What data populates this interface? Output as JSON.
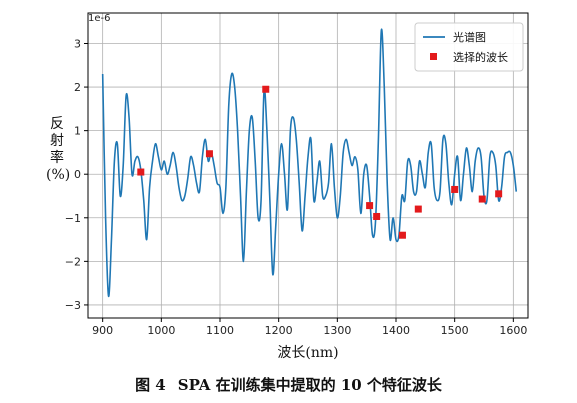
{
  "caption": {
    "figure_no": "图 4",
    "text": "SPA 在训练集中提取的 10 个特征波长"
  },
  "chart_data": {
    "type": "line",
    "xlabel": "波长(nm)",
    "ylabel_chars": [
      "反",
      "射",
      "率",
      "(%)"
    ],
    "y_offset_text": "1e-6",
    "x_ticks": [
      900,
      1000,
      1100,
      1200,
      1300,
      1400,
      1500,
      1600
    ],
    "y_ticks": [
      -3,
      -2,
      -1,
      0,
      1,
      2,
      3
    ],
    "xlim": [
      875,
      1625
    ],
    "ylim": [
      -3.3,
      3.7
    ],
    "grid": true,
    "legend_position": "top-right",
    "colors": {
      "line": "#1f77b4",
      "marker": "#e31a1c"
    },
    "series": [
      {
        "name": "光谱图",
        "kind": "line",
        "x": [
          900,
          905,
          910,
          915,
          920,
          925,
          930,
          935,
          940,
          945,
          950,
          955,
          960,
          965,
          970,
          975,
          980,
          985,
          990,
          995,
          1000,
          1005,
          1010,
          1015,
          1020,
          1025,
          1030,
          1035,
          1040,
          1045,
          1050,
          1055,
          1060,
          1065,
          1070,
          1075,
          1080,
          1085,
          1090,
          1095,
          1100,
          1105,
          1110,
          1115,
          1120,
          1125,
          1130,
          1135,
          1140,
          1145,
          1150,
          1155,
          1160,
          1165,
          1170,
          1175,
          1180,
          1185,
          1190,
          1195,
          1200,
          1205,
          1210,
          1215,
          1220,
          1225,
          1230,
          1235,
          1240,
          1245,
          1250,
          1255,
          1260,
          1265,
          1270,
          1275,
          1280,
          1285,
          1290,
          1295,
          1300,
          1305,
          1310,
          1315,
          1320,
          1325,
          1330,
          1335,
          1340,
          1345,
          1350,
          1355,
          1360,
          1365,
          1370,
          1375,
          1380,
          1385,
          1390,
          1395,
          1400,
          1405,
          1410,
          1415,
          1420,
          1425,
          1430,
          1435,
          1440,
          1445,
          1450,
          1455,
          1460,
          1465,
          1470,
          1475,
          1480,
          1485,
          1490,
          1495,
          1500,
          1505,
          1510,
          1515,
          1520,
          1525,
          1530,
          1535,
          1540,
          1545,
          1550,
          1555,
          1560,
          1565,
          1570,
          1575,
          1580,
          1585,
          1590,
          1595,
          1600,
          1605
        ],
        "y": [
          2.3,
          -1.0,
          -2.8,
          -1.5,
          0.3,
          0.7,
          -0.5,
          0.2,
          1.8,
          1.3,
          0.0,
          0.3,
          0.4,
          0.1,
          -0.6,
          -1.5,
          -0.3,
          0.3,
          0.7,
          0.4,
          0.1,
          0.3,
          0.0,
          0.2,
          0.5,
          0.2,
          -0.3,
          -0.6,
          -0.5,
          -0.1,
          0.4,
          0.2,
          -0.2,
          -0.4,
          0.4,
          0.8,
          0.3,
          0.5,
          0.2,
          -0.2,
          -0.3,
          -0.9,
          -0.3,
          1.6,
          2.3,
          2.0,
          1.0,
          -0.5,
          -2.0,
          -0.4,
          1.0,
          1.3,
          0.3,
          -1.0,
          -0.6,
          1.9,
          1.0,
          -0.6,
          -2.3,
          -1.2,
          0.0,
          0.7,
          0.0,
          -0.8,
          1.0,
          1.3,
          0.8,
          -0.2,
          -1.3,
          -0.5,
          0.4,
          0.8,
          -0.6,
          -0.2,
          0.3,
          -0.5,
          -0.5,
          -0.2,
          0.7,
          -0.3,
          -1.0,
          -0.5,
          0.5,
          0.8,
          0.5,
          0.2,
          0.4,
          0.1,
          -0.9,
          0.0,
          0.2,
          -0.5,
          -1.4,
          -1.1,
          0.8,
          3.3,
          2.0,
          -0.2,
          -1.5,
          -1.0,
          -1.5,
          -1.4,
          -0.5,
          -0.6,
          0.3,
          0.2,
          -0.4,
          -0.4,
          0.3,
          0.0,
          -0.3,
          0.5,
          0.7,
          -0.3,
          -0.6,
          -0.4,
          0.8,
          0.7,
          -0.2,
          -0.7,
          0.0,
          0.4,
          -0.6,
          0.0,
          0.6,
          0.2,
          -0.4,
          0.3,
          0.6,
          0.4,
          -0.5,
          -0.6,
          0.4,
          0.5,
          0.2,
          -0.6,
          -0.3,
          0.4,
          0.5,
          0.5,
          0.2,
          -0.4
        ]
      },
      {
        "name": "选择的波长",
        "kind": "scatter",
        "x": [
          965,
          1082,
          1178,
          1355,
          1367,
          1411,
          1438,
          1500,
          1547,
          1575
        ],
        "y": [
          0.05,
          0.47,
          1.95,
          -0.72,
          -0.97,
          -1.4,
          -0.8,
          -0.35,
          -0.57,
          -0.45
        ]
      }
    ]
  }
}
